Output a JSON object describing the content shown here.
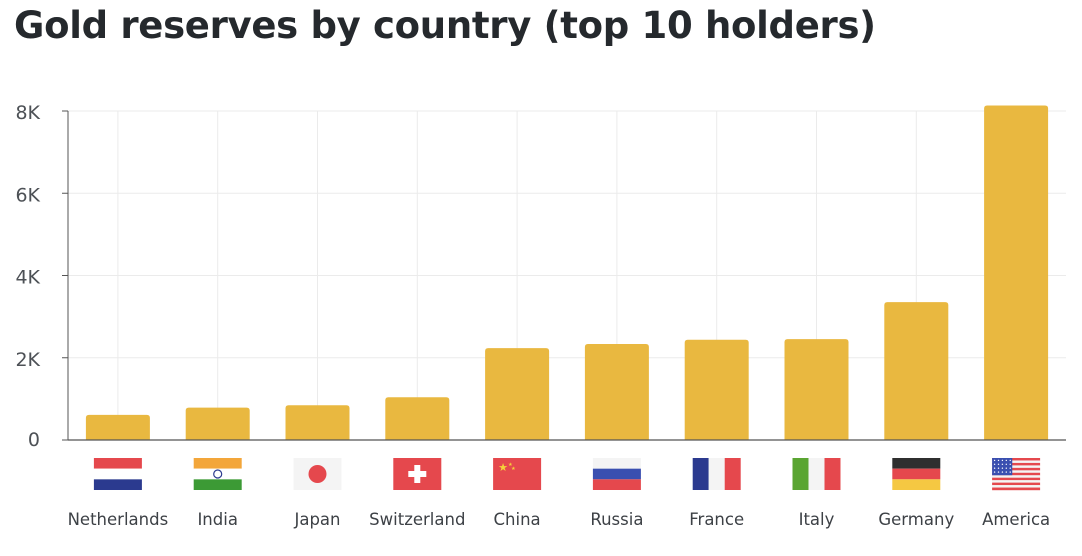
{
  "title": "Gold reserves by country (top 10 holders)",
  "chart_data": {
    "type": "bar",
    "title": "Gold reserves by country (top 10 holders)",
    "xlabel": "",
    "ylabel": "",
    "categories": [
      "Netherlands",
      "India",
      "Japan",
      "Switzerland",
      "China",
      "Russia",
      "France",
      "Italy",
      "Germany",
      "America"
    ],
    "values": [
      612,
      787,
      846,
      1040,
      2235,
      2333,
      2437,
      2452,
      3352,
      8133
    ],
    "ylim": [
      0,
      8000
    ],
    "yticks": [
      0,
      2000,
      4000,
      6000,
      8000
    ],
    "ytick_labels": [
      "0",
      "2K",
      "4K",
      "6K",
      "8K"
    ],
    "grid": true,
    "legend": "none",
    "bar_color": "#e9b840"
  },
  "flags": [
    "netherlands-flag-icon",
    "india-flag-icon",
    "japan-flag-icon",
    "switzerland-flag-icon",
    "china-flag-icon",
    "russia-flag-icon",
    "france-flag-icon",
    "italy-flag-icon",
    "germany-flag-icon",
    "usa-flag-icon"
  ],
  "colors": {
    "bar": "#e9b840",
    "grid": "#ebebeb",
    "axis": "#555555",
    "text": "#25292d"
  }
}
